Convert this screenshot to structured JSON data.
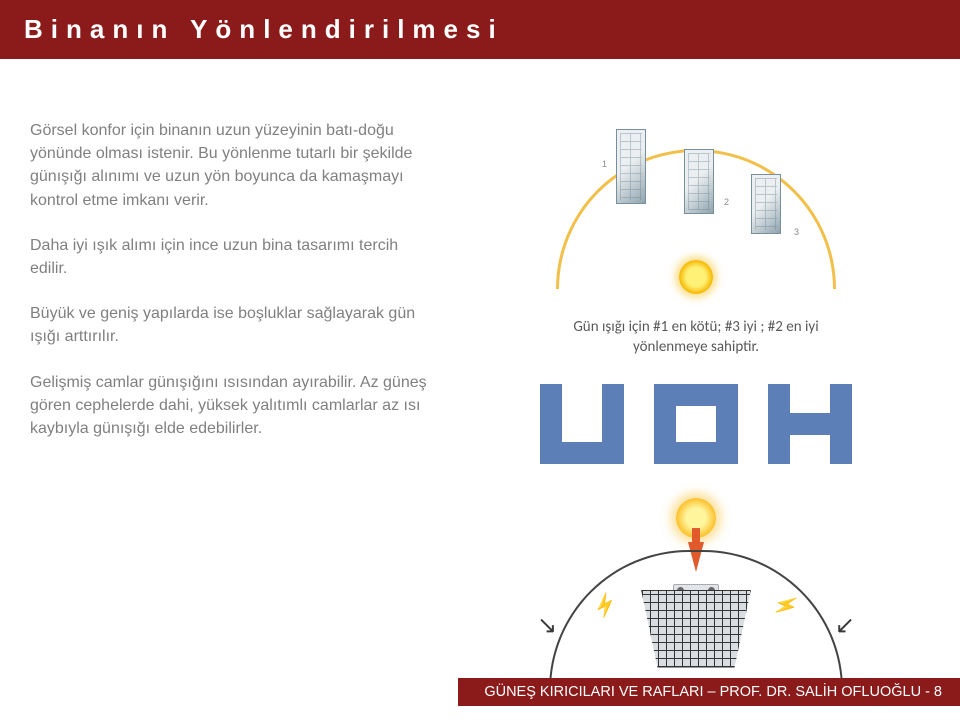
{
  "title": "Binanın Yönlendirilmesi",
  "paragraphs": {
    "p1": "Görsel konfor için binanın uzun yüzeyinin batı-doğu yönünde olması istenir. Bu yönlenme tutarlı bir şekilde günışığı alınımı ve uzun yön boyunca da kamaşmayı kontrol etme imkanı verir.",
    "p2": "Daha iyi ışık alımı için ince uzun bina tasarımı tercih edilir.",
    "p3": "Büyük ve geniş yapılarda ise boşluklar sağlayarak  gün ışığı arttırılır.",
    "p4": "Gelişmiş camlar günışığını ısısından ayırabilir. Az güneş gören cephelerde dahi, yüksek yalıtımlı camlarlar  az ısı kaybıyla günışığı elde edebilirler."
  },
  "caption_line1": "Gün ışığı için #1 en kötü; #3 iyi ; #2 en iyi",
  "caption_line2": "yönlenmeye sahiptir.",
  "plan_color": "#5c7fb8",
  "footer": {
    "label": "GÜNEŞ KIRICILARI VE RAFLARI – PROF. DR. SALİH OFLUOĞLU  -  8"
  }
}
